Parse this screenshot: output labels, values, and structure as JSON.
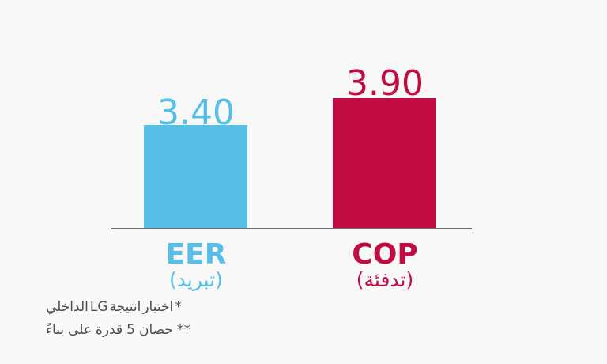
{
  "page": {
    "background": "#F8F8F8",
    "footnote_color": "#4D4D4D"
  },
  "chart_data": {
    "type": "bar",
    "title": "",
    "xlabel": "",
    "ylabel": "",
    "categories": [
      "EER",
      "COP"
    ],
    "category_sublabels": [
      "(تبريد)",
      "(تدفئة)"
    ],
    "values": [
      3.4,
      3.9
    ],
    "value_labels": [
      "3.40",
      "3.90"
    ],
    "bar_colors": [
      "#55BFE8",
      "#C20B41"
    ],
    "baseline_color": "#6F6F6F",
    "ylim": [
      0,
      4.5
    ],
    "grid": false,
    "legend": false
  },
  "footnotes": {
    "line1_tokens": [
      "الداخلي",
      "LG",
      "انتيجة",
      "اختبار",
      "*"
    ],
    "line2_tokens": [
      "بناءً",
      "على",
      "قدرة",
      "5",
      "حصان",
      "**"
    ]
  }
}
